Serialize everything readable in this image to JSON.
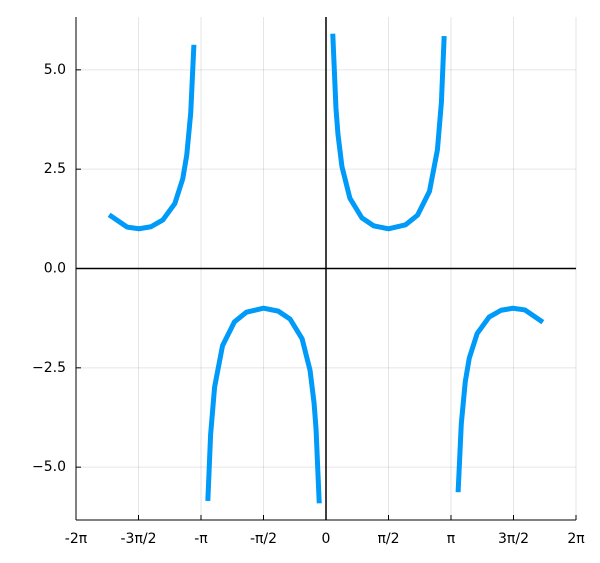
{
  "chart_data": {
    "type": "line",
    "x": [
      -5.45,
      -5.0,
      -4.7,
      -4.4,
      -4.1,
      -3.8,
      -3.6,
      -3.5,
      -3.4,
      -3.32,
      -3.1416,
      -2.97,
      -2.9,
      -2.8,
      -2.6,
      -2.3,
      -2.0,
      -1.5708,
      -1.2,
      -0.9,
      -0.6,
      -0.4,
      -0.3,
      -0.25,
      -0.17,
      0,
      0.17,
      0.25,
      0.3,
      0.4,
      0.6,
      0.9,
      1.2,
      1.5708,
      2.0,
      2.3,
      2.6,
      2.8,
      2.9,
      2.97,
      3.1416,
      3.32,
      3.4,
      3.5,
      3.6,
      3.8,
      4.1,
      4.4,
      4.7,
      5.0,
      5.45
    ],
    "values": [
      1.351,
      1.043,
      1.0,
      1.051,
      1.222,
      1.634,
      2.26,
      2.851,
      3.914,
      5.63,
      null,
      -5.85,
      -4.18,
      -2.985,
      -1.94,
      -1.341,
      -1.1,
      -1.0,
      -1.073,
      -1.277,
      -1.771,
      -2.568,
      -3.384,
      -4.042,
      -5.91,
      null,
      5.91,
      4.042,
      3.384,
      2.568,
      1.771,
      1.277,
      1.073,
      1.0,
      1.1,
      1.341,
      1.94,
      2.985,
      4.18,
      5.85,
      null,
      -5.63,
      -3.914,
      -2.851,
      -2.26,
      -1.634,
      -1.222,
      -1.051,
      -1.0,
      -1.043,
      -1.351
    ],
    "color": "#009af9",
    "xlim": [
      -6.2832,
      6.2832
    ],
    "ylim": [
      -6.33,
      6.33
    ],
    "xticks": [
      {
        "value": -6.2832,
        "label": "-2π"
      },
      {
        "value": -4.7124,
        "label": "-3π/2"
      },
      {
        "value": -3.1416,
        "label": "-π"
      },
      {
        "value": -1.5708,
        "label": "-π/2"
      },
      0,
      {
        "value": 1.5708,
        "label": "π/2"
      },
      {
        "value": 3.1416,
        "label": "π"
      },
      {
        "value": 4.7124,
        "label": "3π/2"
      },
      {
        "value": 6.2832,
        "label": "2π"
      }
    ],
    "yticks": [
      {
        "value": -5,
        "label": "−5.0"
      },
      {
        "value": -2.5,
        "label": "−2.5"
      },
      {
        "value": 0,
        "label": "0.0"
      },
      {
        "value": 2.5,
        "label": "2.5"
      },
      {
        "value": 5,
        "label": "5.0"
      }
    ],
    "grid": true
  }
}
